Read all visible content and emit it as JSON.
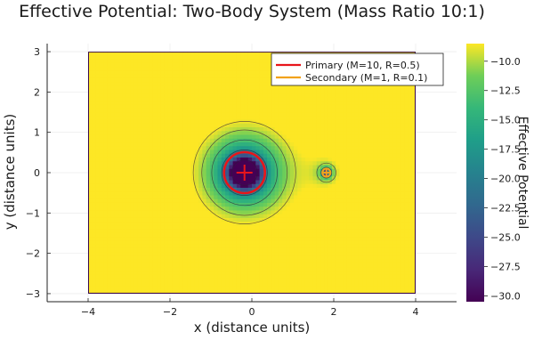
{
  "chart_data": {
    "type": "heatmap",
    "subtype": "filled-contour",
    "title": "Effective Potential: Two-Body System (Mass Ratio 10:1)",
    "xlabel": "x (distance units)",
    "ylabel": "y (distance units)",
    "xlim": [
      -5,
      5
    ],
    "ylim": [
      -3.2,
      3.2
    ],
    "data_x_range": [
      -4,
      4
    ],
    "data_y_range": [
      -3,
      3
    ],
    "x_ticks": [
      -4,
      -2,
      0,
      2,
      4
    ],
    "x_tick_labels": [
      "−4",
      "−2",
      "0",
      "2",
      "4"
    ],
    "y_ticks": [
      -3,
      -2,
      -1,
      0,
      1,
      2,
      3
    ],
    "y_tick_labels": [
      "−3",
      "−2",
      "−1",
      "0",
      "1",
      "2",
      "3"
    ],
    "grid": true,
    "colormap": "viridis",
    "colorbar": {
      "label": "Effective Potential",
      "range": [
        -30.5,
        -8.5
      ],
      "ticks": [
        -10,
        -12.5,
        -15,
        -17.5,
        -20,
        -22.5,
        -25,
        -27.5,
        -30
      ],
      "tick_labels": [
        "−10.0",
        "−12.5",
        "−15.0",
        "−17.5",
        "−20.0",
        "−22.5",
        "−25.0",
        "−27.5",
        "−30.0"
      ]
    },
    "legend_position": "top-right",
    "bodies": [
      {
        "name": "Primary (M=10, R=0.5)",
        "mass": 10,
        "radius": 0.5,
        "x": -0.18,
        "y": 0,
        "color": "#e8151b"
      },
      {
        "name": "Secondary (M=1, R=0.1)",
        "mass": 1,
        "radius": 0.1,
        "x": 1.82,
        "y": 0,
        "color": "#f2a21c"
      }
    ]
  }
}
